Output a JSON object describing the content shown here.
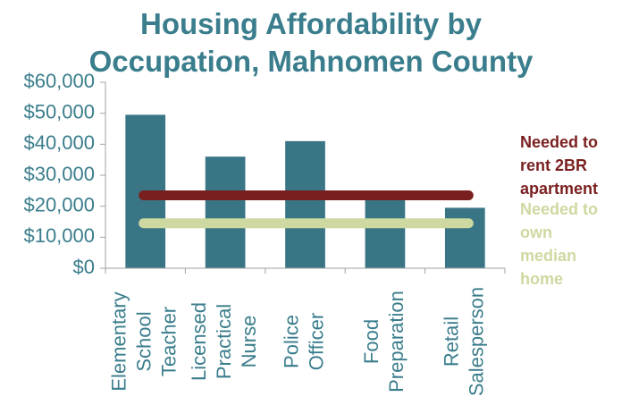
{
  "chart_data": {
    "type": "bar",
    "title": "Housing Affordability by Occupation, Mahnomen County",
    "categories": [
      [
        "Elementary",
        "School",
        "Teacher"
      ],
      [
        "Licensed",
        "Practical",
        "Nurse"
      ],
      [
        "Police",
        "Officer"
      ],
      [
        "Food",
        "Preparation"
      ],
      [
        "Retail",
        "Salesperson"
      ]
    ],
    "values": [
      49500,
      36000,
      41000,
      22000,
      19500
    ],
    "color": "#3a7585",
    "ylim": [
      0,
      60000
    ],
    "yticks": [
      {
        "value": 0,
        "label": "$0"
      },
      {
        "value": 10000,
        "label": "$10,000"
      },
      {
        "value": 20000,
        "label": "$20,000"
      },
      {
        "value": 30000,
        "label": "$30,000"
      },
      {
        "value": 40000,
        "label": "$40,000"
      },
      {
        "value": 50000,
        "label": "$50,000"
      },
      {
        "value": 60000,
        "label": "$60,000"
      }
    ],
    "reference_lines": [
      {
        "label": [
          "Needed to",
          "rent 2BR",
          "apartment"
        ],
        "value": 23500,
        "color": "#7a1f1f"
      },
      {
        "label": [
          "Needed to",
          "own",
          "median",
          "home"
        ],
        "value": 14500,
        "color": "#cdd9a0"
      }
    ]
  }
}
